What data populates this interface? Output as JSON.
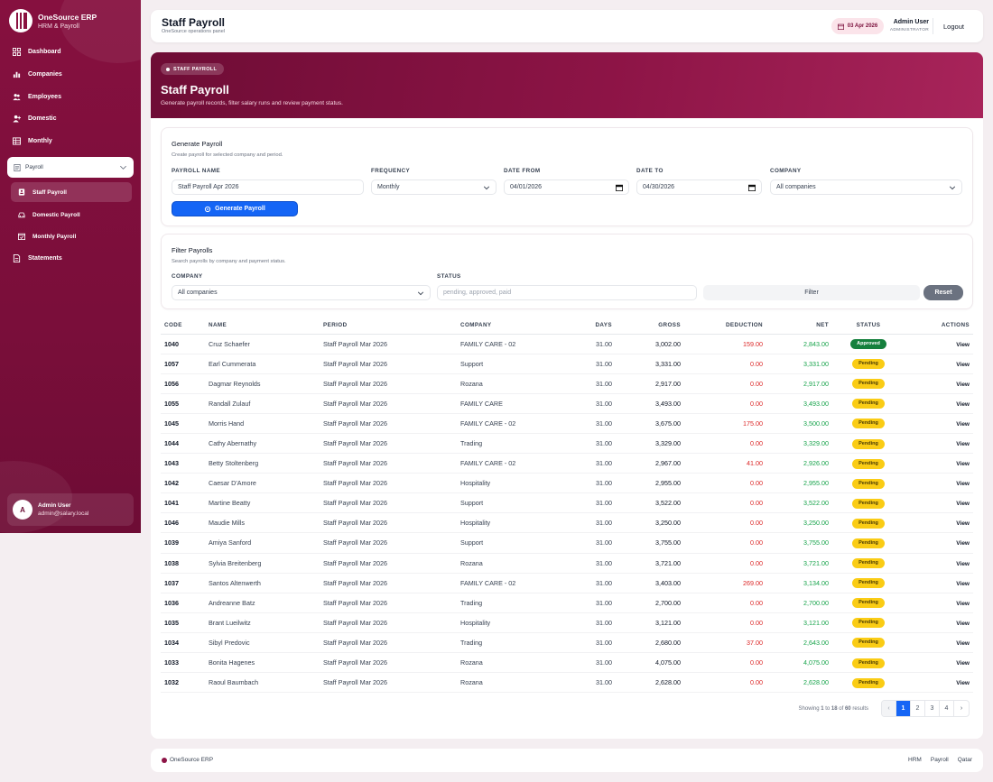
{
  "brand": {
    "name": "OneSource ERP",
    "subtitle": "HRM & Payroll"
  },
  "sidebar": {
    "items": [
      {
        "label": "Dashboard",
        "icon": "grid-icon"
      },
      {
        "label": "Companies",
        "icon": "bar-chart-icon"
      },
      {
        "label": "Employees",
        "icon": "users-icon"
      },
      {
        "label": "Domestic",
        "icon": "user-plus-icon"
      },
      {
        "label": "Monthly",
        "icon": "table-icon"
      }
    ],
    "payroll_group": {
      "label": "Payroll",
      "children": [
        {
          "label": "Staff Payroll",
          "active": true
        },
        {
          "label": "Domestic Payroll"
        },
        {
          "label": "Monthly Payroll"
        }
      ]
    },
    "statements": "Statements",
    "user": {
      "initial": "A",
      "name": "Admin User",
      "email": "admin@salary.local"
    }
  },
  "topbar": {
    "title": "Staff Payroll",
    "subtitle": "OneSource operations panel",
    "date": "03 Apr 2026",
    "user_name": "Admin User",
    "user_role": "ADMINISTRATOR",
    "logout": "Logout"
  },
  "hero": {
    "badge": "STAFF PAYROLL",
    "title": "Staff Payroll",
    "subtitle": "Generate payroll records, filter salary runs and review payment status."
  },
  "generate": {
    "title": "Generate Payroll",
    "subtitle": "Create payroll for selected company and period.",
    "labels": {
      "name": "PAYROLL NAME",
      "frequency": "FREQUENCY",
      "date_from": "DATE FROM",
      "date_to": "DATE TO",
      "company": "COMPANY"
    },
    "values": {
      "name": "Staff Payroll Apr 2026",
      "frequency": "Monthly",
      "date_from": "04/01/2026",
      "date_to": "04/30/2026",
      "company": "All companies"
    },
    "button": "Generate Payroll"
  },
  "filter": {
    "title": "Filter Payrolls",
    "subtitle": "Search payrolls by company and payment status.",
    "labels": {
      "company": "COMPANY",
      "status": "STATUS"
    },
    "company_value": "All companies",
    "status_placeholder": "pending, approved, paid",
    "filter_button": "Filter",
    "reset_button": "Reset"
  },
  "table": {
    "columns": [
      "CODE",
      "NAME",
      "PERIOD",
      "COMPANY",
      "DAYS",
      "GROSS",
      "DEDUCTION",
      "NET",
      "STATUS",
      "ACTIONS"
    ],
    "rows": [
      {
        "code": "1040",
        "name": "Cruz Schaefer",
        "period": "Staff Payroll Mar 2026",
        "company": "FAMILY CARE - 02",
        "days": "31.00",
        "gross": "3,002.00",
        "deduction": "159.00",
        "net": "2,843.00",
        "status": "Approved",
        "action": "View"
      },
      {
        "code": "1057",
        "name": "Earl Cummerata",
        "period": "Staff Payroll Mar 2026",
        "company": "Support",
        "days": "31.00",
        "gross": "3,331.00",
        "deduction": "0.00",
        "net": "3,331.00",
        "status": "Pending",
        "action": "View"
      },
      {
        "code": "1056",
        "name": "Dagmar Reynolds",
        "period": "Staff Payroll Mar 2026",
        "company": "Rozana",
        "days": "31.00",
        "gross": "2,917.00",
        "deduction": "0.00",
        "net": "2,917.00",
        "status": "Pending",
        "action": "View"
      },
      {
        "code": "1055",
        "name": "Randall Zulauf",
        "period": "Staff Payroll Mar 2026",
        "company": "FAMILY CARE",
        "days": "31.00",
        "gross": "3,493.00",
        "deduction": "0.00",
        "net": "3,493.00",
        "status": "Pending",
        "action": "View"
      },
      {
        "code": "1045",
        "name": "Morris Hand",
        "period": "Staff Payroll Mar 2026",
        "company": "FAMILY CARE - 02",
        "days": "31.00",
        "gross": "3,675.00",
        "deduction": "175.00",
        "net": "3,500.00",
        "status": "Pending",
        "action": "View"
      },
      {
        "code": "1044",
        "name": "Cathy Abernathy",
        "period": "Staff Payroll Mar 2026",
        "company": "Trading",
        "days": "31.00",
        "gross": "3,329.00",
        "deduction": "0.00",
        "net": "3,329.00",
        "status": "Pending",
        "action": "View"
      },
      {
        "code": "1043",
        "name": "Betty Stoltenberg",
        "period": "Staff Payroll Mar 2026",
        "company": "FAMILY CARE - 02",
        "days": "31.00",
        "gross": "2,967.00",
        "deduction": "41.00",
        "net": "2,926.00",
        "status": "Pending",
        "action": "View"
      },
      {
        "code": "1042",
        "name": "Caesar D'Amore",
        "period": "Staff Payroll Mar 2026",
        "company": "Hospitality",
        "days": "31.00",
        "gross": "2,955.00",
        "deduction": "0.00",
        "net": "2,955.00",
        "status": "Pending",
        "action": "View"
      },
      {
        "code": "1041",
        "name": "Martine Beatty",
        "period": "Staff Payroll Mar 2026",
        "company": "Support",
        "days": "31.00",
        "gross": "3,522.00",
        "deduction": "0.00",
        "net": "3,522.00",
        "status": "Pending",
        "action": "View"
      },
      {
        "code": "1046",
        "name": "Maudie Mills",
        "period": "Staff Payroll Mar 2026",
        "company": "Hospitality",
        "days": "31.00",
        "gross": "3,250.00",
        "deduction": "0.00",
        "net": "3,250.00",
        "status": "Pending",
        "action": "View"
      },
      {
        "code": "1039",
        "name": "Amiya Sanford",
        "period": "Staff Payroll Mar 2026",
        "company": "Support",
        "days": "31.00",
        "gross": "3,755.00",
        "deduction": "0.00",
        "net": "3,755.00",
        "status": "Pending",
        "action": "View"
      },
      {
        "code": "1038",
        "name": "Sylvia Breitenberg",
        "period": "Staff Payroll Mar 2026",
        "company": "Rozana",
        "days": "31.00",
        "gross": "3,721.00",
        "deduction": "0.00",
        "net": "3,721.00",
        "status": "Pending",
        "action": "View"
      },
      {
        "code": "1037",
        "name": "Santos Altenwerth",
        "period": "Staff Payroll Mar 2026",
        "company": "FAMILY CARE - 02",
        "days": "31.00",
        "gross": "3,403.00",
        "deduction": "269.00",
        "net": "3,134.00",
        "status": "Pending",
        "action": "View"
      },
      {
        "code": "1036",
        "name": "Andreanne Batz",
        "period": "Staff Payroll Mar 2026",
        "company": "Trading",
        "days": "31.00",
        "gross": "2,700.00",
        "deduction": "0.00",
        "net": "2,700.00",
        "status": "Pending",
        "action": "View"
      },
      {
        "code": "1035",
        "name": "Brant Lueilwitz",
        "period": "Staff Payroll Mar 2026",
        "company": "Hospitality",
        "days": "31.00",
        "gross": "3,121.00",
        "deduction": "0.00",
        "net": "3,121.00",
        "status": "Pending",
        "action": "View"
      },
      {
        "code": "1034",
        "name": "Sibyl Predovic",
        "period": "Staff Payroll Mar 2026",
        "company": "Trading",
        "days": "31.00",
        "gross": "2,680.00",
        "deduction": "37.00",
        "net": "2,643.00",
        "status": "Pending",
        "action": "View"
      },
      {
        "code": "1033",
        "name": "Bonita Hagenes",
        "period": "Staff Payroll Mar 2026",
        "company": "Rozana",
        "days": "31.00",
        "gross": "4,075.00",
        "deduction": "0.00",
        "net": "4,075.00",
        "status": "Pending",
        "action": "View"
      },
      {
        "code": "1032",
        "name": "Raoul Baumbach",
        "period": "Staff Payroll Mar 2026",
        "company": "Rozana",
        "days": "31.00",
        "gross": "2,628.00",
        "deduction": "0.00",
        "net": "2,628.00",
        "status": "Pending",
        "action": "View"
      }
    ]
  },
  "pagination": {
    "showing": {
      "prefix": "Showing",
      "from": "1",
      "to_word": "to",
      "to": "18",
      "of_word": "of",
      "total": "60",
      "suffix": "results"
    },
    "prev": "‹",
    "pages": [
      "1",
      "2",
      "3",
      "4"
    ],
    "current": "1",
    "next": "›"
  },
  "footer": {
    "brand": "OneSource ERP",
    "links": [
      "HRM",
      "Payroll",
      "Qatar"
    ]
  },
  "colors": {
    "primary": "#7a0e3a",
    "accent_blue": "#1565f5",
    "approved": "#15803d",
    "pending": "#facc15",
    "deduction": "#dc2626",
    "net": "#16a34a"
  }
}
